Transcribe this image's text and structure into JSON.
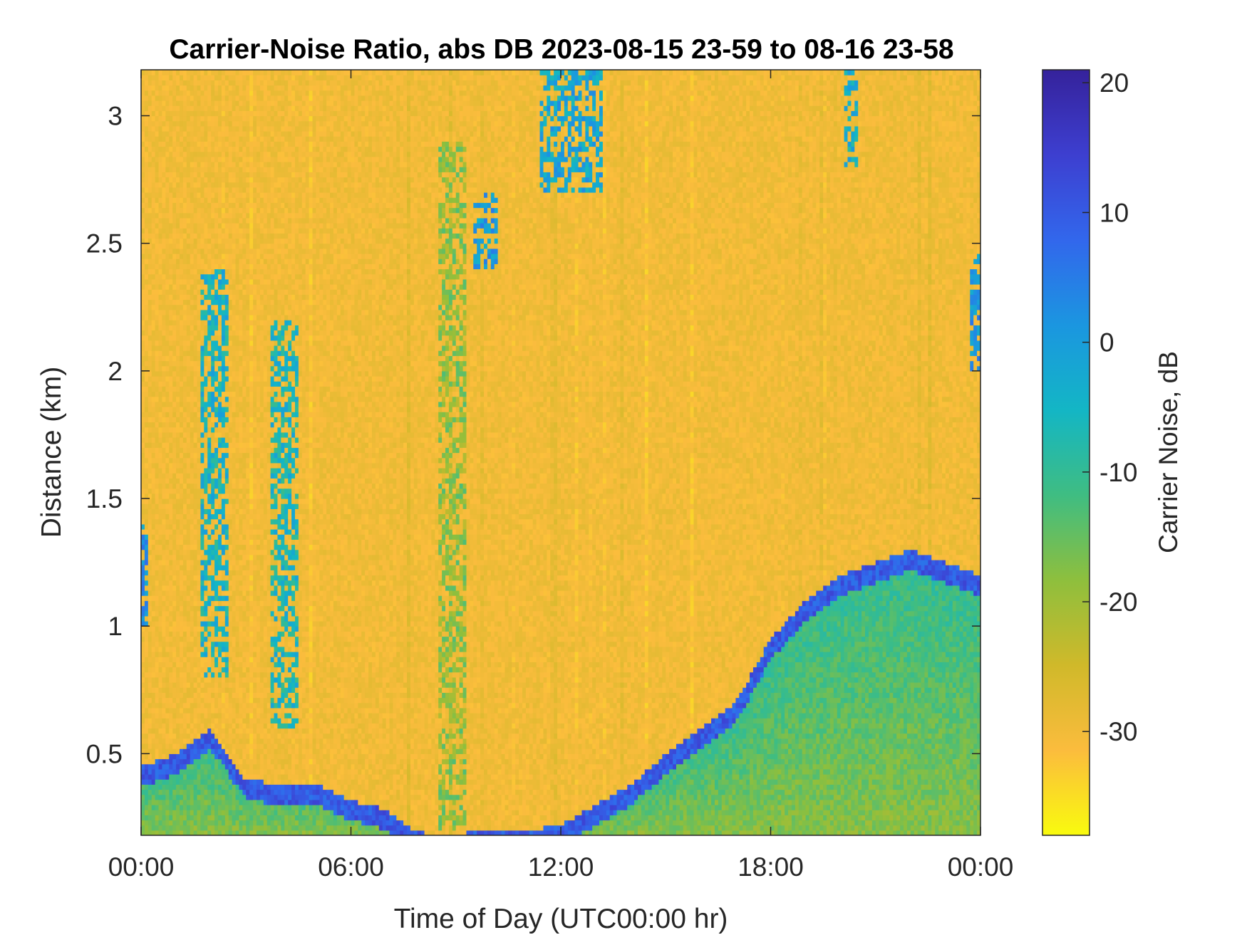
{
  "chart_data": {
    "type": "heatmap",
    "title": "Carrier-Noise Ratio, abs DB 2023-08-15 23-59 to 08-16 23-58",
    "xlabel": "Time of Day (UTC00:00 hr)",
    "ylabel": "Distance (km)",
    "colorbar_label": "Carrier Noise, dB",
    "xlim": [
      0,
      24
    ],
    "ylim": [
      0.18,
      3.18
    ],
    "clim": [
      -38,
      21
    ],
    "x_ticks": [
      {
        "value": 0,
        "label": "00:00"
      },
      {
        "value": 6,
        "label": "06:00"
      },
      {
        "value": 12,
        "label": "12:00"
      },
      {
        "value": 18,
        "label": "18:00"
      },
      {
        "value": 24,
        "label": "00:00"
      }
    ],
    "y_ticks": [
      {
        "value": 0.5,
        "label": "0.5"
      },
      {
        "value": 1,
        "label": "1"
      },
      {
        "value": 1.5,
        "label": "1.5"
      },
      {
        "value": 2,
        "label": "2"
      },
      {
        "value": 2.5,
        "label": "2.5"
      },
      {
        "value": 3,
        "label": "3"
      }
    ],
    "colorbar_ticks": [
      {
        "value": 20,
        "label": "20"
      },
      {
        "value": 10,
        "label": "10"
      },
      {
        "value": 0,
        "label": "0"
      },
      {
        "value": -10,
        "label": "-10"
      },
      {
        "value": -20,
        "label": "-20"
      },
      {
        "value": -30,
        "label": "-30"
      }
    ],
    "colormap": "parula-reversed",
    "colormap_stops": [
      "#f9fb0e",
      "#fbbc3d",
      "#d0b92a",
      "#8ebf3d",
      "#3fbd82",
      "#13b6c5",
      "#1b96e0",
      "#3267ec",
      "#3d3fd0",
      "#35229b"
    ],
    "background_level_db": -30,
    "boundary_layer_top_km": [
      [
        0,
        0.45
      ],
      [
        1,
        0.5
      ],
      [
        2,
        0.6
      ],
      [
        2.5,
        0.5
      ],
      [
        3,
        0.4
      ],
      [
        4,
        0.38
      ],
      [
        5,
        0.38
      ],
      [
        6,
        0.32
      ],
      [
        7,
        0.28
      ],
      [
        7.8,
        0.2
      ],
      [
        8.5,
        0.18
      ],
      [
        10,
        0.2
      ],
      [
        11,
        0.2
      ],
      [
        12,
        0.22
      ],
      [
        13,
        0.3
      ],
      [
        14,
        0.38
      ],
      [
        15,
        0.5
      ],
      [
        16,
        0.6
      ],
      [
        17,
        0.7
      ],
      [
        18,
        0.95
      ],
      [
        19,
        1.1
      ],
      [
        20,
        1.2
      ],
      [
        21,
        1.25
      ],
      [
        22,
        1.3
      ],
      [
        23,
        1.25
      ],
      [
        24,
        1.2
      ]
    ],
    "strong_return_patches": [
      {
        "t_start": 0,
        "t_end": 0.2,
        "d_low": 1.0,
        "d_high": 1.45,
        "db": 2
      },
      {
        "t_start": 1.7,
        "t_end": 2.5,
        "d_low": 0.8,
        "d_high": 2.4,
        "db": -5
      },
      {
        "t_start": 3.7,
        "t_end": 4.5,
        "d_low": 0.6,
        "d_high": 2.2,
        "db": -6
      },
      {
        "t_start": 8.5,
        "t_end": 9.3,
        "d_low": 0.2,
        "d_high": 2.9,
        "db": -18
      },
      {
        "t_start": 9.5,
        "t_end": 10.2,
        "d_low": 2.4,
        "d_high": 2.7,
        "db": 0
      },
      {
        "t_start": 11.4,
        "t_end": 13.2,
        "d_low": 2.7,
        "d_high": 3.18,
        "db": -2
      },
      {
        "t_start": 20.1,
        "t_end": 20.5,
        "d_low": 2.8,
        "d_high": 3.18,
        "db": -4
      },
      {
        "t_start": 23.7,
        "t_end": 24,
        "d_low": 2.0,
        "d_high": 2.45,
        "db": 1
      }
    ]
  }
}
